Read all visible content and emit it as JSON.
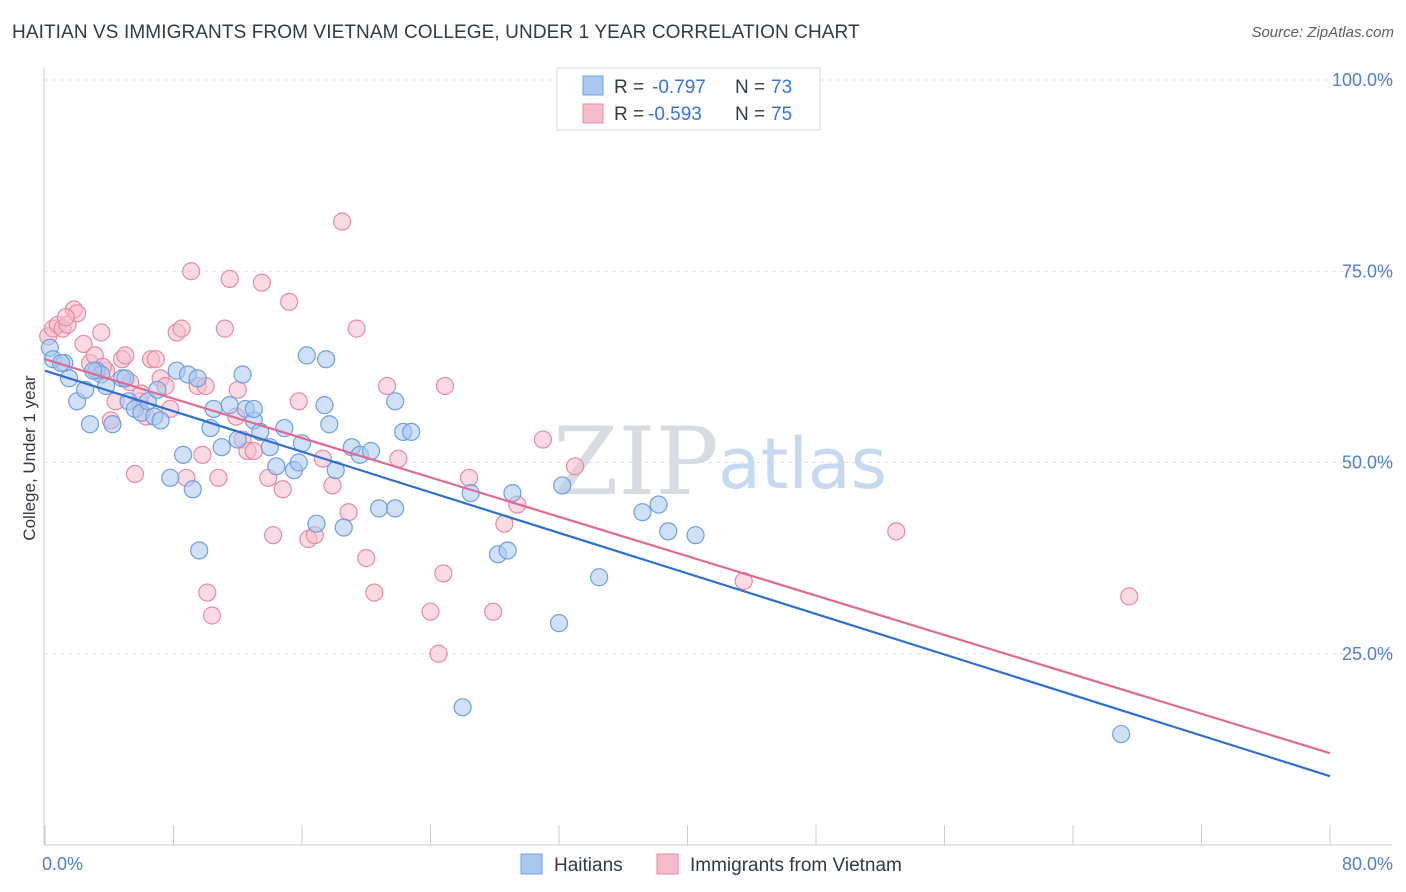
{
  "title": "HAITIAN VS IMMIGRANTS FROM VIETNAM COLLEGE, UNDER 1 YEAR CORRELATION CHART",
  "source": "Source: ZipAtlas.com",
  "watermark": {
    "zip": "ZIP",
    "atlas": "atlas"
  },
  "colors": {
    "blue_fill": "#a9c8f0",
    "blue_stroke": "#6f9fe0",
    "blue_line": "#2f6fd0",
    "pink_fill": "#f5bccc",
    "pink_stroke": "#e88aa6",
    "pink_line": "#e06a93",
    "tick_text": "#4f7fd1",
    "grid": "#e2e4e8"
  },
  "legend": {
    "rows": [
      {
        "r_label": "R = ",
        "r_value": "-0.797",
        "n_label": "N = ",
        "n_value": "73"
      },
      {
        "r_label": "R = ",
        "r_value": "-0.593",
        "n_label": "N = ",
        "n_value": "75"
      }
    ]
  },
  "chart_data": {
    "type": "scatter",
    "xlabel": "",
    "ylabel": "College, Under 1 year",
    "xlim": [
      0,
      80
    ],
    "ylim": [
      0,
      105
    ],
    "x_ticks": [
      "0.0%",
      "80.0%"
    ],
    "y_ticks": [
      {
        "value": 100,
        "label": "100.0%"
      },
      {
        "value": 75,
        "label": "75.0%"
      },
      {
        "value": 50,
        "label": "50.0%"
      },
      {
        "value": 25,
        "label": "25.0%"
      }
    ],
    "grid": true,
    "legend_position": "bottom",
    "series": [
      {
        "name": "Haitians",
        "color": "#6f9fe0",
        "trend": {
          "x": [
            0,
            80
          ],
          "y": [
            62,
            9
          ]
        },
        "points": [
          [
            0.3,
            65
          ],
          [
            0.5,
            63.5
          ],
          [
            1.2,
            63
          ],
          [
            1.5,
            61
          ],
          [
            2.0,
            58
          ],
          [
            2.5,
            59.5
          ],
          [
            2.8,
            55
          ],
          [
            3.2,
            62
          ],
          [
            3.5,
            61.5
          ],
          [
            3.8,
            60
          ],
          [
            4.2,
            55
          ],
          [
            4.8,
            61
          ],
          [
            5.2,
            58
          ],
          [
            5.6,
            57
          ],
          [
            6.0,
            56.5
          ],
          [
            6.4,
            58
          ],
          [
            6.8,
            56
          ],
          [
            7.2,
            55.5
          ],
          [
            7.8,
            48
          ],
          [
            8.2,
            62
          ],
          [
            8.6,
            51
          ],
          [
            8.9,
            61.5
          ],
          [
            9.2,
            46.5
          ],
          [
            9.6,
            38.5
          ],
          [
            10.3,
            54.5
          ],
          [
            10.5,
            57
          ],
          [
            11.0,
            52
          ],
          [
            11.5,
            57.5
          ],
          [
            12.0,
            53
          ],
          [
            12.3,
            61.5
          ],
          [
            12.5,
            57
          ],
          [
            13.0,
            55.5
          ],
          [
            13.4,
            54
          ],
          [
            14.0,
            52
          ],
          [
            14.4,
            49.5
          ],
          [
            14.9,
            54.5
          ],
          [
            15.5,
            49
          ],
          [
            15.8,
            50
          ],
          [
            16.0,
            52.5
          ],
          [
            16.3,
            64
          ],
          [
            16.9,
            42
          ],
          [
            17.4,
            57.5
          ],
          [
            17.7,
            55
          ],
          [
            18.1,
            49
          ],
          [
            18.6,
            41.5
          ],
          [
            19.1,
            52
          ],
          [
            19.6,
            51
          ],
          [
            20.3,
            51.5
          ],
          [
            20.8,
            44
          ],
          [
            21.8,
            44
          ],
          [
            22.3,
            54
          ],
          [
            22.8,
            54
          ],
          [
            21.8,
            58
          ],
          [
            26.5,
            46
          ],
          [
            28.2,
            38
          ],
          [
            28.8,
            38.5
          ],
          [
            29.1,
            46
          ],
          [
            32.2,
            47
          ],
          [
            32.0,
            29
          ],
          [
            34.5,
            35
          ],
          [
            37.2,
            43.5
          ],
          [
            38.2,
            44.5
          ],
          [
            38.8,
            41
          ],
          [
            40.5,
            40.5
          ],
          [
            26.0,
            18
          ],
          [
            67.0,
            14.5
          ],
          [
            1.0,
            63
          ],
          [
            3.0,
            62
          ],
          [
            5.0,
            61
          ],
          [
            7.0,
            59.5
          ],
          [
            9.5,
            61
          ],
          [
            13.0,
            57
          ],
          [
            17.5,
            63.5
          ]
        ]
      },
      {
        "name": "Immigrants from Vietnam",
        "color": "#e88aa6",
        "trend": {
          "x": [
            0,
            80
          ],
          "y": [
            63.5,
            12
          ]
        },
        "points": [
          [
            0.2,
            66.5
          ],
          [
            0.5,
            67.5
          ],
          [
            0.8,
            68
          ],
          [
            1.1,
            67.5
          ],
          [
            1.4,
            68
          ],
          [
            1.8,
            70
          ],
          [
            2.0,
            69.5
          ],
          [
            2.4,
            65.5
          ],
          [
            2.8,
            63
          ],
          [
            3.1,
            64
          ],
          [
            3.5,
            67
          ],
          [
            3.8,
            62
          ],
          [
            4.1,
            55.5
          ],
          [
            4.4,
            58
          ],
          [
            4.8,
            63.5
          ],
          [
            5.0,
            64
          ],
          [
            5.3,
            60.5
          ],
          [
            5.6,
            48.5
          ],
          [
            5.9,
            58
          ],
          [
            6.3,
            56
          ],
          [
            6.6,
            63.5
          ],
          [
            6.9,
            63.5
          ],
          [
            7.2,
            61
          ],
          [
            7.5,
            60
          ],
          [
            7.8,
            57
          ],
          [
            8.2,
            67
          ],
          [
            8.5,
            67.5
          ],
          [
            8.8,
            48
          ],
          [
            9.1,
            75
          ],
          [
            9.5,
            60
          ],
          [
            9.8,
            51
          ],
          [
            10.1,
            33
          ],
          [
            10.4,
            30
          ],
          [
            10.8,
            48
          ],
          [
            11.2,
            67.5
          ],
          [
            11.5,
            74
          ],
          [
            11.9,
            56
          ],
          [
            12.3,
            53
          ],
          [
            12.6,
            51.5
          ],
          [
            13.0,
            51.5
          ],
          [
            13.5,
            73.5
          ],
          [
            13.9,
            48
          ],
          [
            14.2,
            40.5
          ],
          [
            14.8,
            46.5
          ],
          [
            15.2,
            71
          ],
          [
            15.8,
            58
          ],
          [
            16.4,
            40
          ],
          [
            16.8,
            40.5
          ],
          [
            17.3,
            50.5
          ],
          [
            17.9,
            47
          ],
          [
            18.5,
            81.5
          ],
          [
            18.9,
            43.5
          ],
          [
            19.4,
            67.5
          ],
          [
            20.0,
            37.5
          ],
          [
            20.5,
            33
          ],
          [
            21.3,
            60
          ],
          [
            22.0,
            50.5
          ],
          [
            24.0,
            30.5
          ],
          [
            24.5,
            25
          ],
          [
            24.8,
            35.5
          ],
          [
            24.9,
            60
          ],
          [
            26.4,
            48
          ],
          [
            27.9,
            30.5
          ],
          [
            28.6,
            42
          ],
          [
            29.4,
            44.5
          ],
          [
            31.0,
            53
          ],
          [
            33.0,
            49.5
          ],
          [
            43.5,
            34.5
          ],
          [
            53.0,
            41
          ],
          [
            67.5,
            32.5
          ],
          [
            10.0,
            60
          ],
          [
            12.0,
            59.5
          ],
          [
            3.6,
            62.5
          ],
          [
            1.3,
            69
          ],
          [
            6.0,
            59
          ]
        ]
      }
    ]
  },
  "bottom_legend": [
    {
      "label": "Haitians",
      "color": "#a9c8f0"
    },
    {
      "label": "Immigrants from Vietnam",
      "color": "#f5bccc"
    }
  ]
}
